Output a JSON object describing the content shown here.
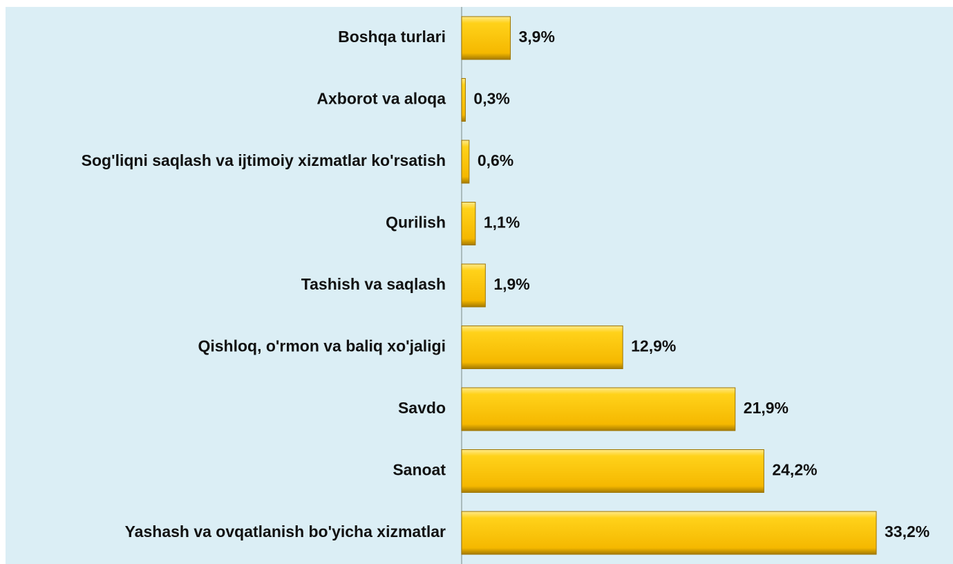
{
  "chart_data": {
    "type": "barh",
    "categories": [
      "Boshqa turlari",
      "Axborot va aloqa",
      "Sog'liqni saqlash va ijtimoiy xizmatlar ko'rsatish",
      "Qurilish",
      "Tashish va saqlash",
      "Qishloq, o'rmon va baliq xo'jaligi",
      "Savdo",
      "Sanoat",
      "Yashash va ovqatlanish bo'yicha xizmatlar"
    ],
    "values": [
      3.9,
      0.3,
      0.6,
      1.1,
      1.9,
      12.9,
      21.9,
      24.2,
      33.2
    ],
    "value_labels": [
      "3,9%",
      "0,3%",
      "0,6%",
      "1,1%",
      "1,9%",
      "12,9%",
      "21,9%",
      "24,2%",
      "33,2%"
    ],
    "color": "#ffc800"
  }
}
